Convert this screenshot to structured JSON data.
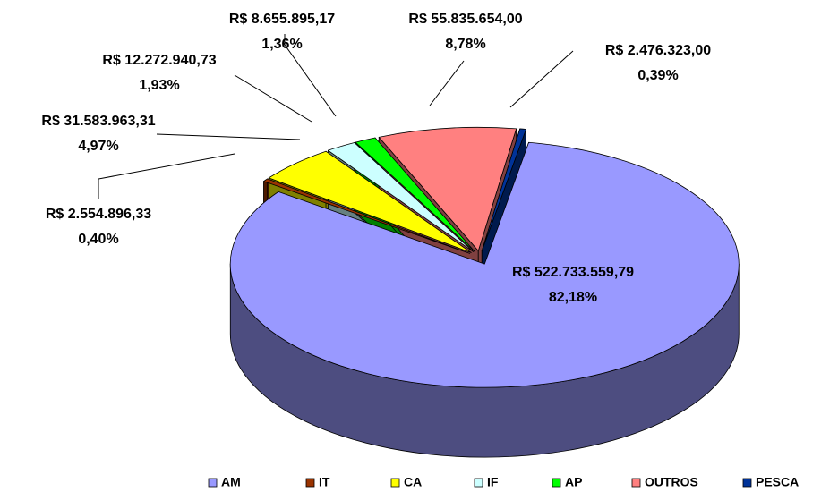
{
  "chart_data": {
    "type": "pie3d",
    "categories": [
      "AM",
      "IT",
      "CA",
      "IF",
      "AP",
      "OUTROS",
      "PESCA"
    ],
    "values": [
      82.18,
      0.4,
      4.97,
      1.93,
      1.36,
      8.78,
      0.39
    ],
    "value_labels": [
      "82,18%",
      "0,40%",
      "4,97%",
      "1,93%",
      "1,36%",
      "8,78%",
      "0,39%"
    ],
    "amounts": [
      522733559.79,
      2554896.33,
      31583963.31,
      12272940.73,
      8655895.17,
      55835654.0,
      2476323.0
    ],
    "amount_labels": [
      "R$ 522.733.559,79",
      "R$ 2.554.896,33",
      "R$ 31.583.963,31",
      "R$ 12.272.940,73",
      "R$ 8.655.895,17",
      "R$ 55.835.654,00",
      "R$ 2.476.323,00"
    ],
    "colors": [
      "#9999ff",
      "#993300",
      "#ffff00",
      "#ccffff",
      "#00ff00",
      "#ff8080",
      "#003399"
    ],
    "legend": "bottom"
  }
}
